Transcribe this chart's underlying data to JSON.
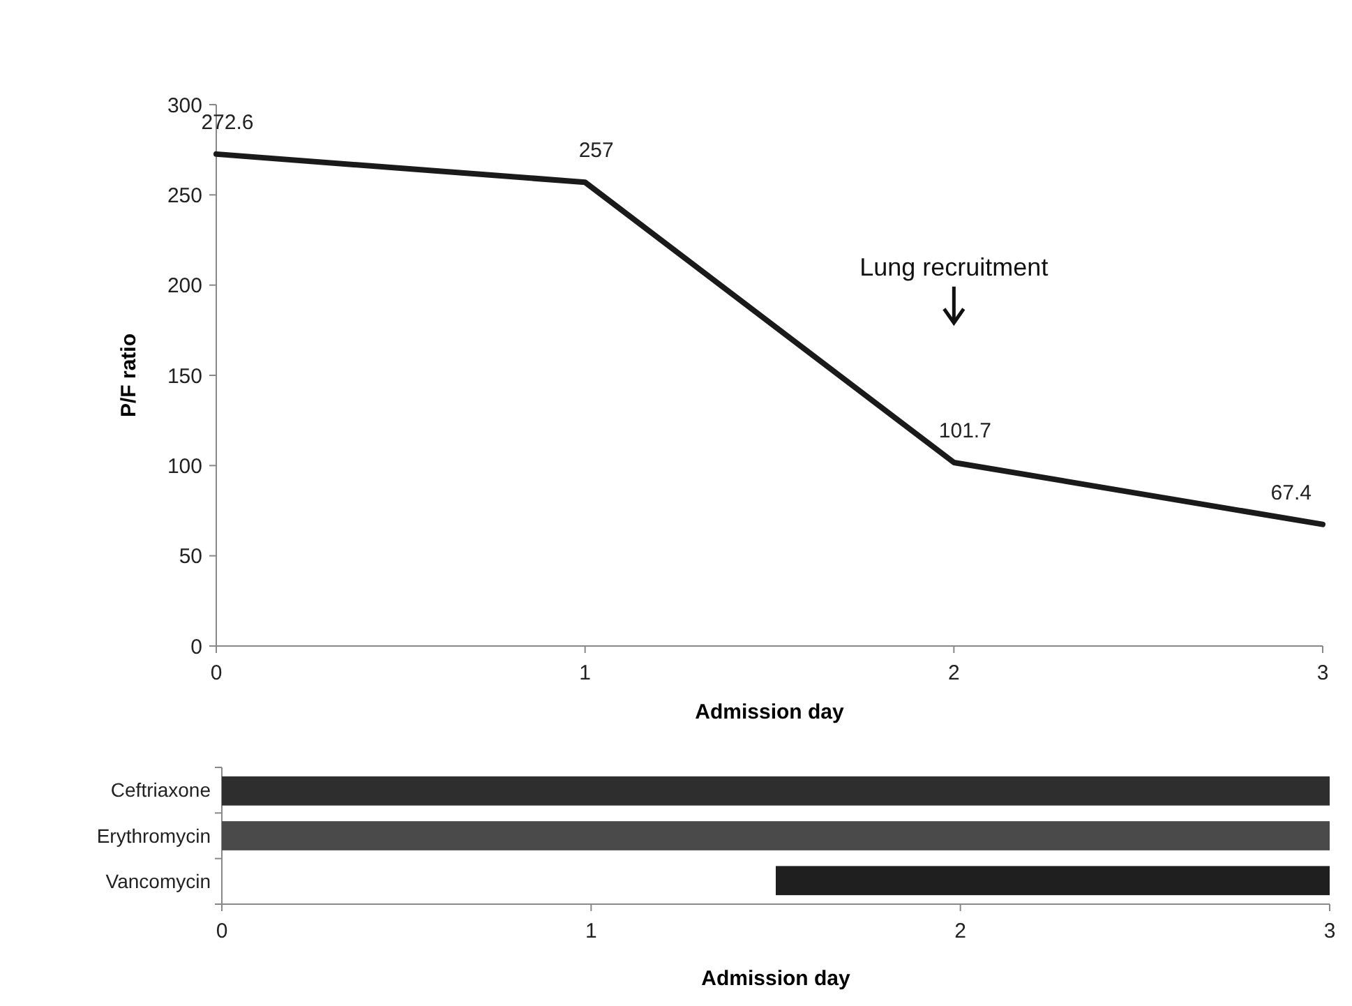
{
  "chart_data": [
    {
      "type": "line",
      "x": [
        0,
        1,
        2,
        3
      ],
      "values": [
        272.6,
        257,
        101.7,
        67.4
      ],
      "color": "#1a1a1a",
      "data_labels": true,
      "xlabel": "Admission day",
      "ylabel": "P/F ratio",
      "xlim": [
        0,
        3
      ],
      "xticks": [
        0,
        1,
        2,
        3
      ],
      "ylim": [
        0,
        300
      ],
      "yticks": [
        0,
        50,
        100,
        150,
        200,
        250,
        300
      ],
      "grid": false,
      "marker": "none",
      "line_style": "solid",
      "annotations": [
        "Lung recruitment"
      ]
    },
    {
      "type": "bar",
      "orientation": "horizontal",
      "categories": [
        "Ceftriaxone",
        "Erythromycin",
        "Vancomycin"
      ],
      "base": [
        0,
        0,
        1.5
      ],
      "values": [
        3,
        3,
        1.5
      ],
      "colors": [
        "#2e2e2e",
        "#4a4a4a",
        "#1f1f1f"
      ],
      "xlabel": "Admission day",
      "xlim": [
        0,
        3
      ],
      "xticks": [
        0,
        1,
        2,
        3
      ]
    }
  ]
}
